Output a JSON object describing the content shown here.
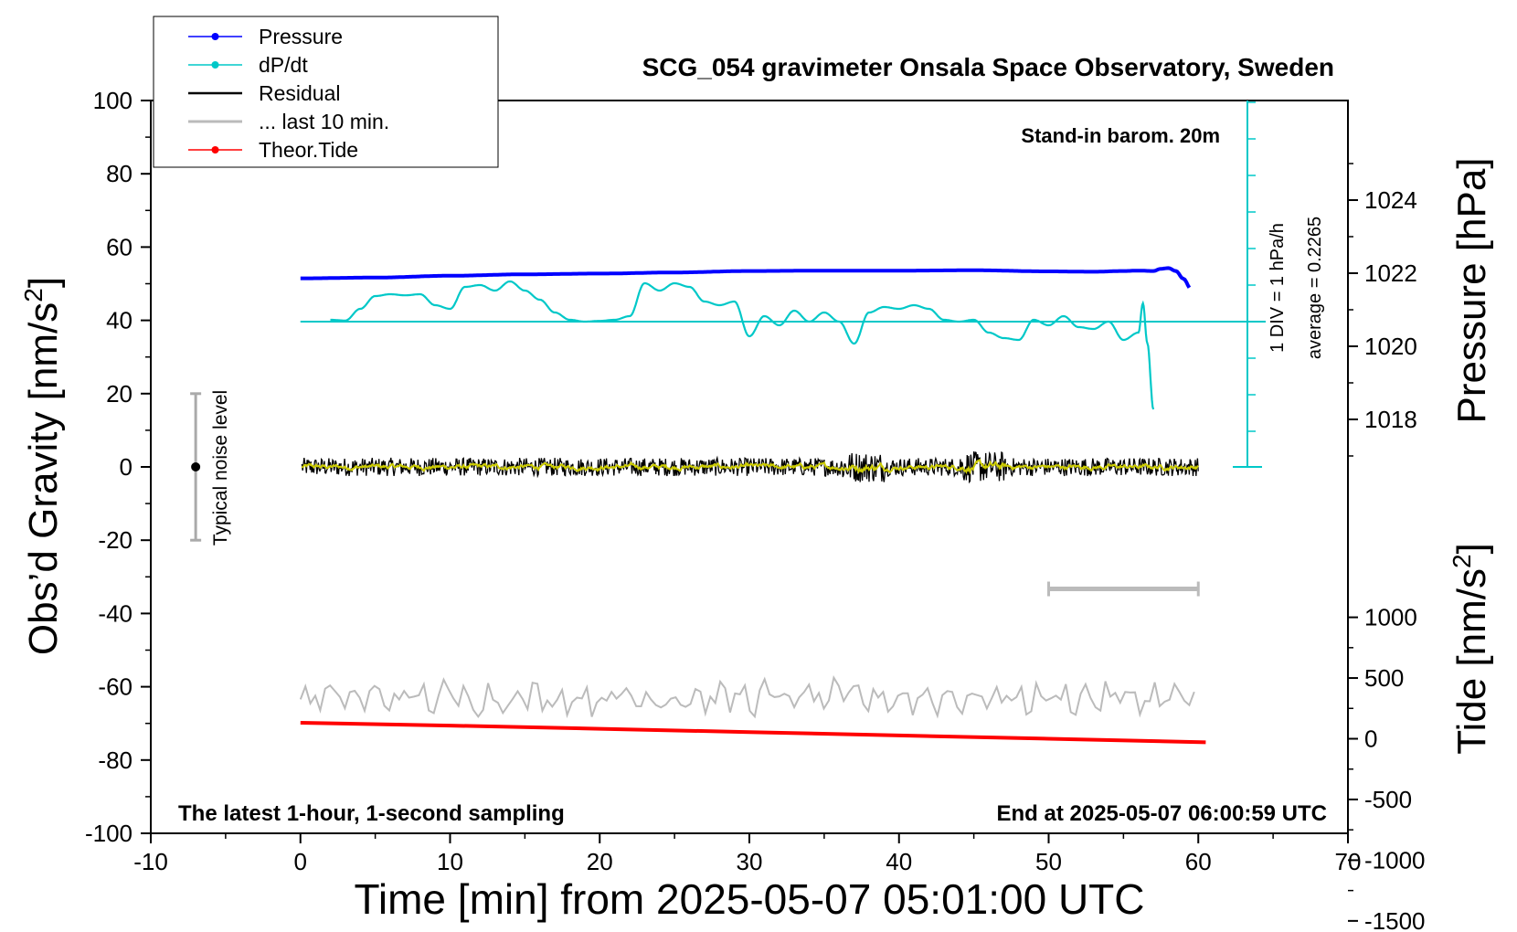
{
  "title": "SCG_054 gravimeter Onsala Space Observatory, Sweden",
  "stand_in": "Stand-in barom. 20m",
  "footer_left": "The latest 1-hour, 1-second sampling",
  "footer_right": "End at 2025-05-07 06:00:59 UTC",
  "noise_label": "Typical noise level",
  "rate_label": "1 DIV = 1 hPa/h",
  "average_label": "average = 0.2265",
  "legend": [
    {
      "label": "Pressure",
      "color": "#0000ff",
      "marker": true
    },
    {
      "label": "dP/dt",
      "color": "#00c8c8",
      "marker": true
    },
    {
      "label": "Residual",
      "color": "#000000",
      "marker": false
    },
    {
      "label": "... last 10 min.",
      "color": "#bbbbbb",
      "marker": false
    },
    {
      "label": "Theor.Tide",
      "color": "#ff0000",
      "marker": true
    }
  ],
  "chart_data": {
    "type": "line",
    "title": "SCG_054 gravimeter Onsala Space Observatory, Sweden",
    "xlabel": "Time [min] from 2025-05-07 05:01:00 UTC",
    "ylabel": "Obs’d Gravity [nm/s",
    "ylabel_sup": "2",
    "ylabel_end": "]",
    "y2label": "Pressure [hPa]",
    "y3label": "Tide [nm/s",
    "y3label_sup": "2",
    "y3label_end": "]",
    "xlim": [
      -10,
      70
    ],
    "ylim": [
      -100,
      100
    ],
    "x_ticks": [
      "-10",
      "0",
      "10",
      "20",
      "30",
      "40",
      "50",
      "60",
      "70"
    ],
    "y_ticks": [
      "-100",
      "-80",
      "-60",
      "-40",
      "-20",
      "0",
      "20",
      "40",
      "60",
      "80",
      "100"
    ],
    "pressure_ticks": [
      "1018",
      "1020",
      "1022",
      "1024"
    ],
    "tide_ticks": [
      "-1500",
      "-1000",
      "-500",
      "0",
      "500",
      "1000"
    ],
    "grid": false,
    "legend_position": "top-left",
    "noise_level": {
      "x": -7,
      "center": 0,
      "low": -20,
      "high": 20
    },
    "series": [
      {
        "name": "Pressure",
        "unit": "hPa",
        "x": [
          0,
          5,
          10,
          15,
          20,
          25,
          30,
          35,
          40,
          45,
          50,
          53,
          55,
          56,
          57,
          57.5,
          58,
          58.5,
          59,
          59.5
        ],
        "values": [
          1021.86,
          1021.88,
          1021.93,
          1021.97,
          1021.99,
          1022.02,
          1022.06,
          1022.07,
          1022.07,
          1022.08,
          1022.05,
          1022.04,
          1022.06,
          1022.07,
          1022.06,
          1022.12,
          1022.14,
          1022.06,
          1021.85,
          1021.58
        ]
      },
      {
        "name": "dP/dt",
        "unit": "hPa/h",
        "x": [
          2,
          3,
          4,
          5,
          6,
          7,
          8,
          9,
          10,
          11,
          12,
          13,
          14,
          15,
          16,
          17,
          18,
          19,
          20,
          21,
          22,
          23,
          24,
          25,
          26,
          27,
          28,
          29,
          30,
          31,
          32,
          33,
          34,
          35,
          36,
          37,
          38,
          39,
          40,
          41,
          42,
          43,
          44,
          45,
          46,
          47,
          48,
          49,
          50,
          51,
          52,
          53,
          54,
          55,
          56,
          56.3,
          56.6,
          57
        ],
        "values": [
          0.05,
          0.03,
          0.35,
          0.7,
          0.75,
          0.72,
          0.75,
          0.45,
          0.35,
          0.95,
          1.0,
          0.85,
          1.1,
          0.85,
          0.6,
          0.25,
          0.05,
          0.0,
          0.02,
          0.05,
          0.15,
          1.05,
          0.85,
          1.05,
          0.95,
          0.55,
          0.45,
          0.55,
          -0.4,
          0.15,
          -0.1,
          0.3,
          0.0,
          0.25,
          0.0,
          -0.6,
          0.25,
          0.4,
          0.35,
          0.45,
          0.35,
          0.05,
          0.0,
          0.05,
          -0.3,
          -0.45,
          -0.5,
          0.05,
          -0.1,
          0.15,
          -0.15,
          -0.2,
          0.0,
          -0.5,
          -0.3,
          0.5,
          -0.6,
          -2.4
        ]
      },
      {
        "name": "Residual",
        "unit": "nm/s2",
        "x_range": [
          0,
          60
        ],
        "amplitude": 2.5,
        "mean": 0
      },
      {
        "name": "... last 10 min.",
        "unit": "nm/s2",
        "x_range": [
          0,
          60
        ],
        "amplitude": 5,
        "mean": -63
      },
      {
        "name": "Theor.Tide",
        "unit": "nm/s2",
        "x": [
          0,
          10,
          20,
          30,
          40,
          50,
          60.5
        ],
        "values": [
          132,
          108,
          82,
          55,
          27,
          0,
          -29
        ]
      }
    ],
    "tide_span_bar": {
      "x_start": 50,
      "x_end": 60,
      "y": -33.3
    }
  }
}
